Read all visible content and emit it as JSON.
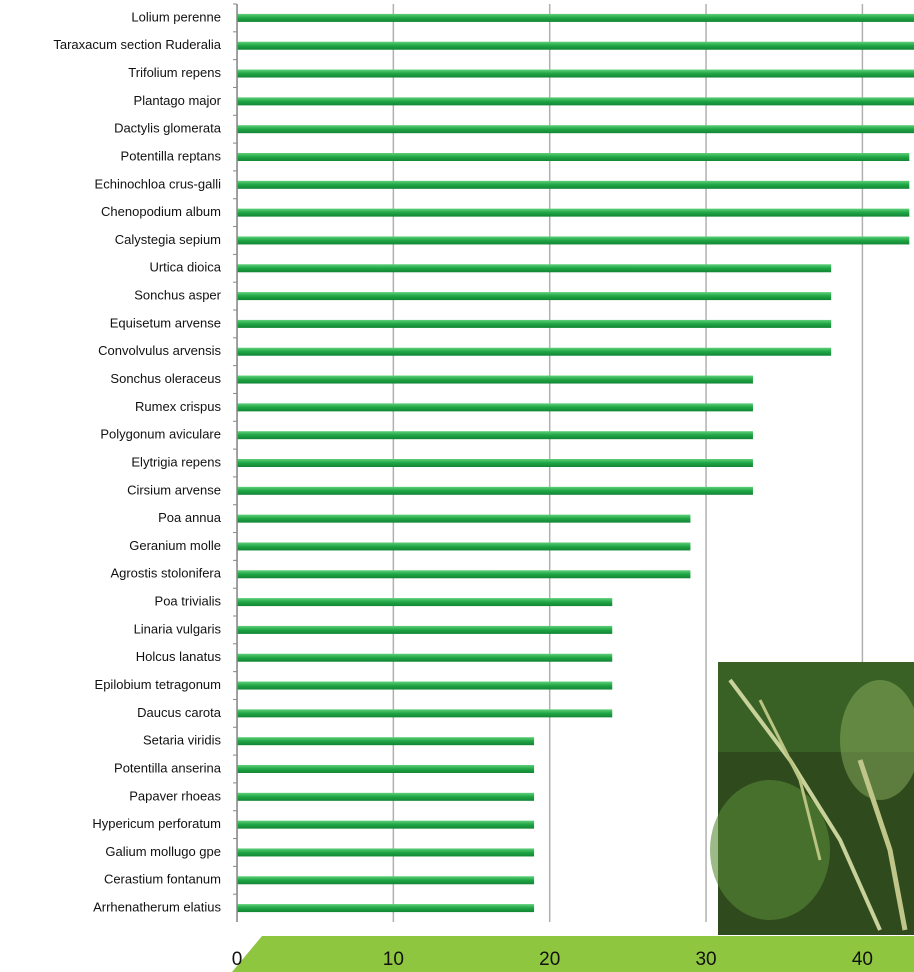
{
  "chart_data": {
    "type": "bar",
    "orientation": "horizontal",
    "categories": [
      "Lolium perenne",
      "Taraxacum section Ruderalia",
      "Trifolium repens",
      "Plantago major",
      "Dactylis glomerata",
      "Potentilla reptans",
      "Echinochloa crus-galli",
      "Chenopodium album",
      "Calystegia sepium",
      "Urtica dioica",
      "Sonchus asper",
      "Equisetum arvense",
      "Convolvulus arvensis",
      "Sonchus oleraceus",
      "Rumex crispus",
      "Polygonum aviculare",
      "Elytrigia repens",
      "Cirsium arvense",
      "Poa annua",
      "Geranium molle",
      "Agrostis stolonifera",
      "Poa trivialis",
      "Linaria vulgaris",
      "Holcus lanatus",
      "Epilobium tetragonum",
      "Daucus carota",
      "Setaria viridis",
      "Potentilla anserina",
      "Papaver rhoeas",
      "Hypericum perforatum",
      "Galium mollugo gpe",
      "Cerastium fontanum",
      "Arrhenatherum elatius"
    ],
    "values": [
      48,
      48,
      48,
      48,
      48,
      43,
      43,
      43,
      43,
      38,
      38,
      38,
      38,
      33,
      33,
      33,
      33,
      33,
      29,
      29,
      29,
      24,
      24,
      24,
      24,
      24,
      19,
      19,
      19,
      19,
      19,
      19,
      19
    ],
    "color": "#22a84a",
    "xlim": [
      0,
      43.3
    ],
    "xticks": [
      0,
      10,
      20,
      30,
      40
    ],
    "grid": true
  }
}
